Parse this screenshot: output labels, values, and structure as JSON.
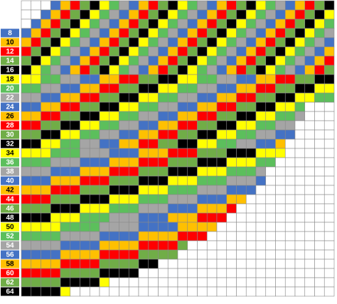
{
  "row_labels": [
    "8",
    "10",
    "12",
    "14",
    "16",
    "18",
    "20",
    "22",
    "24",
    "26",
    "28",
    "30",
    "32",
    "34",
    "36",
    "38",
    "40",
    "42",
    "44",
    "46",
    "48",
    "50",
    "52",
    "54",
    "56",
    "58",
    "60",
    "62",
    "64"
  ],
  "palette": [
    "#000000",
    "#ffff00",
    "#5cbf5c",
    "#a5a5a5",
    "#4472c4",
    "#ffc000",
    "#ff0000",
    "#70ad47"
  ]
}
